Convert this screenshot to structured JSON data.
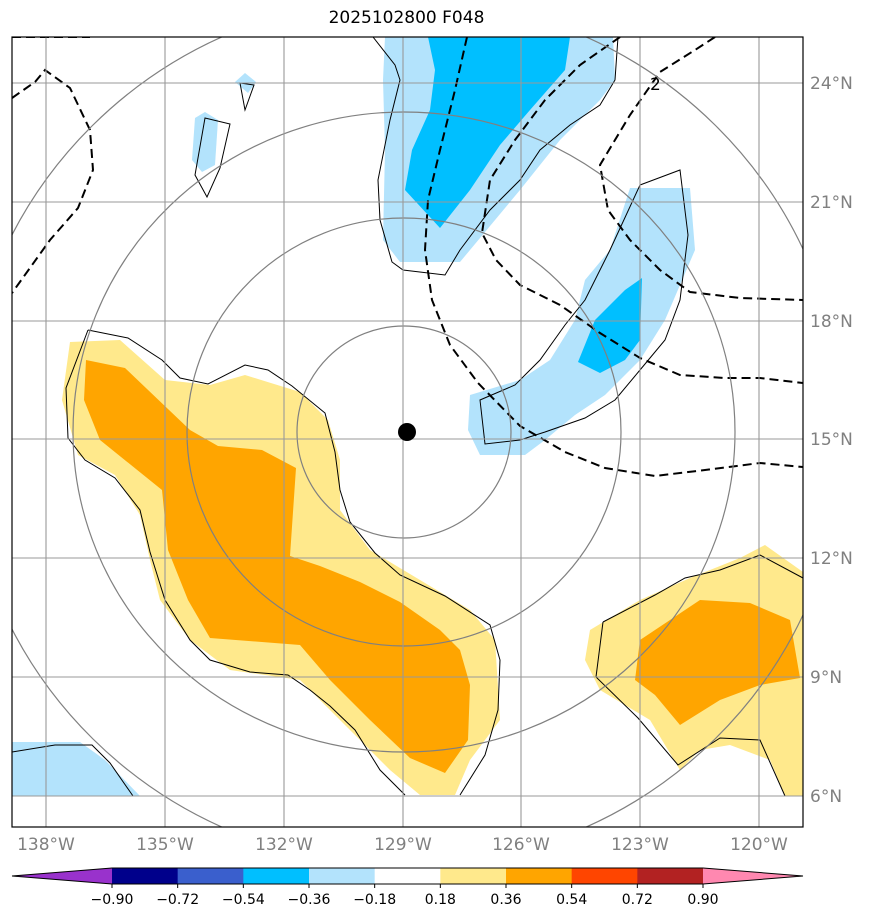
{
  "title": "2025102800 F048",
  "map": {
    "lon_labels": [
      "138°W",
      "135°W",
      "132°W",
      "129°W",
      "126°W",
      "123°W",
      "120°W"
    ],
    "lat_labels": [
      "24°N",
      "21°N",
      "18°N",
      "15°N",
      "12°N",
      "9°N",
      "6°N"
    ],
    "contour_label": "2",
    "center_marker": "storm-center",
    "colors": {
      "light_blue": "#b3e3fc",
      "deep_sky": "#00bfff",
      "khaki": "#ffe98c",
      "orange": "#ffa500",
      "grid": "#808080"
    }
  },
  "colorbar": {
    "labels": [
      "−0.90",
      "−0.72",
      "−0.54",
      "−0.36",
      "−0.18",
      "0.18",
      "0.36",
      "0.54",
      "0.72",
      "0.90"
    ],
    "colors": [
      "#9932cc",
      "#00008b",
      "#3a5fcd",
      "#00bfff",
      "#b3e3fc",
      "#ffffff",
      "#ffe98c",
      "#ffa500",
      "#ff4500",
      "#b22222",
      "#ff88b0"
    ]
  }
}
